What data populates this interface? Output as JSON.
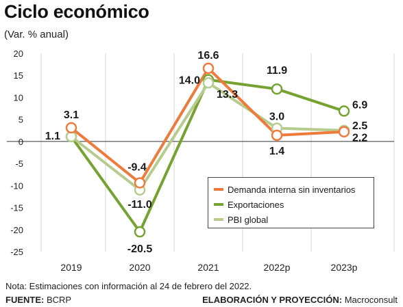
{
  "header": {
    "title": "Ciclo económico",
    "subtitle": "(Var. % anual)"
  },
  "note": "Nota: Estimaciones con información al 24 de febrero del 2022.",
  "footer": {
    "source_label": "FUENTE:",
    "source_value": "BCRP",
    "credit_label": "ELABORACIÓN Y PROYECCIÓN:",
    "credit_value": "Macroconsult"
  },
  "colors": {
    "demanda": "#ee7a3b",
    "exportaciones": "#76a232",
    "pbi": "#b6cc8e"
  },
  "chart_data": {
    "type": "line",
    "categories": [
      "2019",
      "2020",
      "2021",
      "2022p",
      "2023p"
    ],
    "ylim": [
      -25,
      20
    ],
    "yticks": [
      20,
      15,
      10,
      5,
      0,
      -5,
      -10,
      -15,
      -20,
      -25
    ],
    "ytick_labels": [
      "20",
      "15",
      "10",
      "5",
      "0",
      "-5",
      "-10",
      "-15",
      "-20",
      "-25"
    ],
    "grid": "vertical",
    "legend_position": "bottom-right",
    "series": [
      {
        "name": "Demanda interna sin inventarios",
        "color_key": "demanda",
        "values": [
          3.1,
          -9.4,
          16.6,
          1.4,
          2.2
        ]
      },
      {
        "name": "Exportaciones",
        "color_key": "exportaciones",
        "values": [
          1.1,
          -20.5,
          14.0,
          11.9,
          6.9
        ]
      },
      {
        "name": "PBI global",
        "color_key": "pbi",
        "values": [
          1.1,
          -11.0,
          13.3,
          3.0,
          2.5
        ]
      }
    ],
    "data_labels": [
      {
        "text": "3.1",
        "category": "2019",
        "value": 3.1
      },
      {
        "text": "1.1",
        "category": "2019",
        "value": 1.1
      },
      {
        "text": "-9.4",
        "category": "2020",
        "value": -9.4
      },
      {
        "text": "-11.0",
        "category": "2020",
        "value": -11.0
      },
      {
        "text": "-20.5",
        "category": "2020",
        "value": -20.5
      },
      {
        "text": "16.6",
        "category": "2021",
        "value": 16.6
      },
      {
        "text": "14.0",
        "category": "2021",
        "value": 14.0
      },
      {
        "text": "13.3",
        "category": "2021",
        "value": 13.3
      },
      {
        "text": "11.9",
        "category": "2022p",
        "value": 11.9
      },
      {
        "text": "3.0",
        "category": "2022p",
        "value": 3.0
      },
      {
        "text": "1.4",
        "category": "2022p",
        "value": 1.4
      },
      {
        "text": "6.9",
        "category": "2023p",
        "value": 6.9
      },
      {
        "text": "2.5",
        "category": "2023p",
        "value": 2.5
      },
      {
        "text": "2.2",
        "category": "2023p",
        "value": 2.2
      }
    ]
  }
}
